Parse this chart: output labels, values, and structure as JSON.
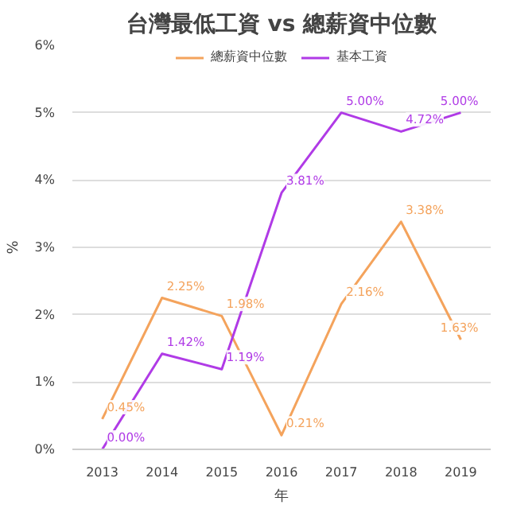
{
  "chart_data": {
    "type": "line",
    "title": "台灣最低工資 vs 總薪資中位數",
    "xlabel": "年",
    "ylabel": "%",
    "categories": [
      "2013",
      "2014",
      "2015",
      "2016",
      "2017",
      "2018",
      "2019"
    ],
    "series": [
      {
        "name": "總薪資中位數",
        "color": "#f4a35c",
        "values": [
          0.45,
          2.25,
          1.98,
          0.21,
          2.16,
          3.38,
          1.63
        ],
        "value_labels": [
          "0.45%",
          "2.25%",
          "1.98%",
          "0.21%",
          "2.16%",
          "3.38%",
          "1.63%"
        ]
      },
      {
        "name": "基本工資",
        "color": "#b03be6",
        "values": [
          0.0,
          1.42,
          1.19,
          3.81,
          5.0,
          4.72,
          5.0
        ],
        "value_labels": [
          "0.00%",
          "1.42%",
          "1.19%",
          "3.81%",
          "5.00%",
          "4.72%",
          "5.00%"
        ]
      }
    ],
    "ylim": [
      0,
      6
    ],
    "yticks": [
      {
        "value": 0,
        "label": "0%"
      },
      {
        "value": 1,
        "label": "1%"
      },
      {
        "value": 2,
        "label": "2%"
      },
      {
        "value": 3,
        "label": "3%"
      },
      {
        "value": 4,
        "label": "4%"
      },
      {
        "value": 5,
        "label": "5%"
      },
      {
        "value": 6,
        "label": "6%"
      }
    ],
    "grid": "y",
    "legend": "top",
    "marker": "none",
    "line_style": "solid"
  }
}
